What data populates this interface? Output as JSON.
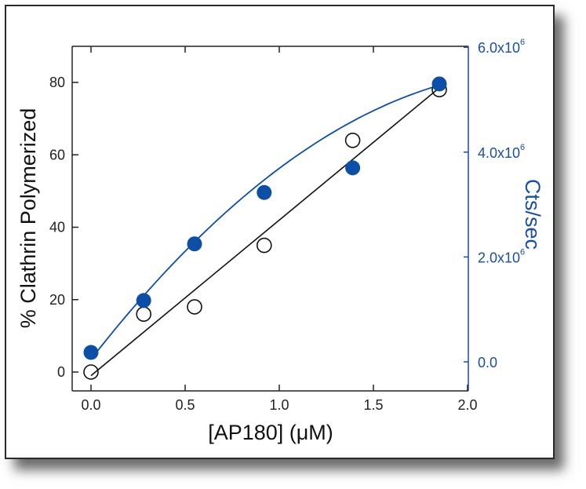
{
  "chart_data": {
    "type": "scatter",
    "title": "",
    "xlabel": "[AP180] (μM)",
    "ylabel": "% Clathrin Polymerized",
    "y2label": "Cts/sec",
    "xlim": [
      -0.07,
      2.0
    ],
    "ylim": [
      -5,
      90
    ],
    "y2lim": [
      -0.55,
      6.0
    ],
    "x_ticks": [
      "0.0",
      "0.5",
      "1.0",
      "1.5",
      "2.0"
    ],
    "y_ticks": [
      "0",
      "20",
      "40",
      "60",
      "80"
    ],
    "y2_ticks": [
      "0.0",
      "2.0x10^6",
      "4.0x10^6",
      "6.0x10^6"
    ],
    "y2_ticks_display": [
      {
        "mantissa": "0.0",
        "exp": ""
      },
      {
        "mantissa": "2.0x10",
        "exp": "6"
      },
      {
        "mantissa": "4.0x10",
        "exp": "6"
      },
      {
        "mantissa": "6.0x10",
        "exp": "6"
      }
    ],
    "grid": false,
    "legend": "none",
    "series": [
      {
        "name": "% Clathrin Polymerized (open circles, left axis)",
        "axis": "left",
        "marker": "open-circle",
        "color": "#111111",
        "fit": "linear",
        "x": [
          0.0,
          0.28,
          0.55,
          0.92,
          1.39,
          1.85
        ],
        "values": [
          0,
          16,
          18,
          35,
          64,
          78
        ]
      },
      {
        "name": "Cts/sec (filled circles, right axis)",
        "axis": "right",
        "marker": "filled-circle",
        "color": "#0d4ea6",
        "fit": "curve",
        "x": [
          0.0,
          0.28,
          0.55,
          0.92,
          1.39,
          1.85
        ],
        "values": [
          180000,
          1170000,
          2250000,
          3230000,
          3700000,
          5300000
        ]
      }
    ]
  },
  "colors": {
    "accent_blue": "#0d4ea6",
    "axis_blue": "#1a4fa0",
    "black": "#111111"
  }
}
